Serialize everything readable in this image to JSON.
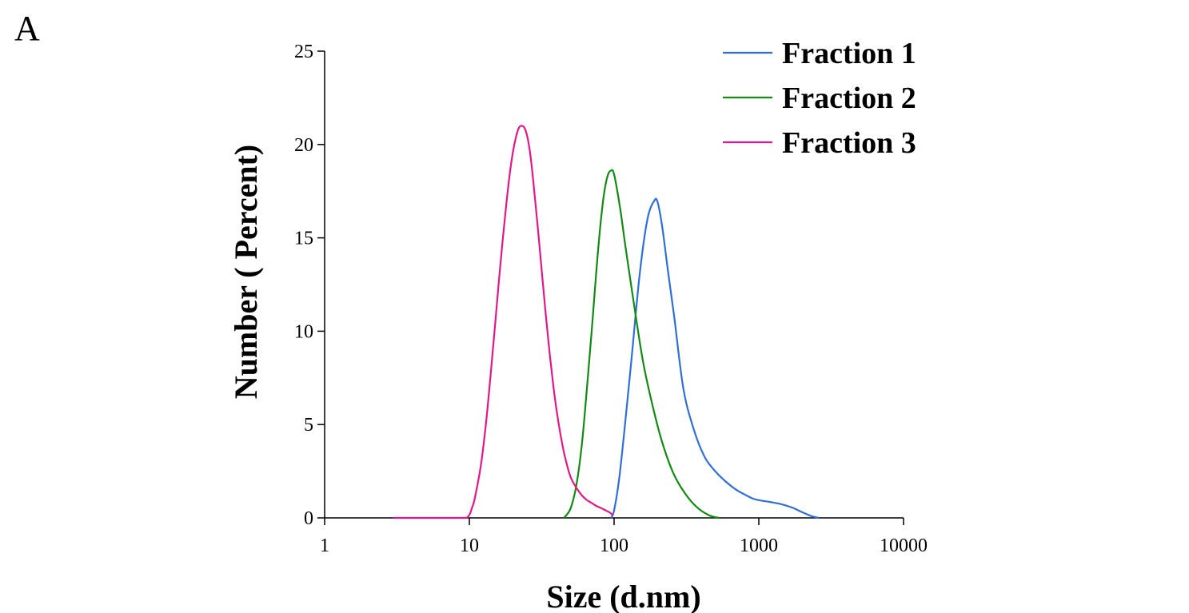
{
  "panel_label": "A",
  "chart_data": {
    "type": "line",
    "title": "",
    "xlabel": "Size (d.nm)",
    "ylabel": "Number ( Percent)",
    "xscale": "log",
    "xlim": [
      1,
      10000
    ],
    "ylim": [
      0,
      25
    ],
    "xticks": [
      1,
      10,
      100,
      1000,
      10000
    ],
    "xtick_labels": [
      "1",
      "10",
      "100",
      "1000",
      "10000"
    ],
    "yticks": [
      0,
      5,
      10,
      15,
      20,
      25
    ],
    "ytick_labels": [
      "0",
      "5",
      "10",
      "15",
      "20",
      "25"
    ],
    "grid": false,
    "legend_position": "top-right",
    "series": [
      {
        "name": "Fraction 1",
        "color": "#2f6fd6",
        "x": [
          95,
          100,
          110,
          130,
          150,
          170,
          190,
          200,
          215,
          235,
          260,
          300,
          350,
          420,
          500,
          600,
          700,
          800,
          900,
          1000,
          1200,
          1400,
          1700,
          2000,
          2300,
          2600
        ],
        "y": [
          0,
          0.4,
          2.5,
          8.0,
          13.0,
          16.0,
          17.0,
          16.9,
          15.6,
          13.3,
          10.8,
          7.0,
          4.9,
          3.3,
          2.5,
          1.9,
          1.5,
          1.25,
          1.05,
          0.95,
          0.85,
          0.75,
          0.55,
          0.3,
          0.1,
          0
        ]
      },
      {
        "name": "Fraction 2",
        "color": "#138a13",
        "x": [
          45,
          50,
          55,
          60,
          65,
          70,
          75,
          80,
          85,
          90,
          95,
          100,
          110,
          120,
          140,
          160,
          190,
          220,
          260,
          310,
          370,
          450,
          530
        ],
        "y": [
          0,
          0.5,
          1.8,
          4.0,
          7.0,
          10.0,
          13.0,
          15.5,
          17.3,
          18.3,
          18.6,
          18.4,
          16.6,
          14.5,
          11.0,
          8.2,
          5.6,
          3.8,
          2.3,
          1.3,
          0.6,
          0.15,
          0
        ]
      },
      {
        "name": "Fraction 3",
        "color": "#e0198a",
        "x": [
          3,
          5,
          7,
          9.5,
          10.5,
          11,
          12,
          13,
          14,
          15,
          16,
          17,
          18,
          19,
          20,
          21,
          22,
          23,
          24,
          25,
          26,
          27,
          28,
          30,
          32,
          34,
          36,
          38,
          40,
          43,
          46,
          50,
          55,
          60,
          65,
          70,
          75,
          80,
          85,
          90,
          95,
          98
        ],
        "y": [
          0,
          0,
          0,
          0,
          0.6,
          1.2,
          2.8,
          5.0,
          7.6,
          10.2,
          12.7,
          14.9,
          16.8,
          18.4,
          19.6,
          20.4,
          20.9,
          21.0,
          20.9,
          20.5,
          19.8,
          18.8,
          17.6,
          15.2,
          12.8,
          10.6,
          8.7,
          7.1,
          5.8,
          4.3,
          3.2,
          2.2,
          1.6,
          1.2,
          0.95,
          0.8,
          0.65,
          0.55,
          0.45,
          0.35,
          0.25,
          0.1
        ]
      }
    ]
  }
}
